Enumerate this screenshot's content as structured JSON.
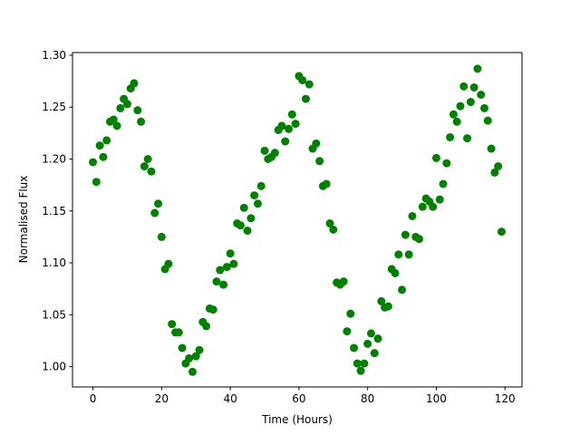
{
  "chart_data": {
    "type": "scatter",
    "xlabel": "Time (Hours)",
    "ylabel": "Normalised Flux",
    "color": "#008000",
    "x": [
      0,
      1,
      2,
      3,
      4,
      5,
      6,
      7,
      8,
      9,
      10,
      11,
      12,
      13,
      14,
      15,
      16,
      17,
      18,
      19,
      20,
      21,
      22,
      23,
      24,
      25,
      26,
      27,
      28,
      29,
      30,
      31,
      32,
      33,
      34,
      35,
      36,
      37,
      38,
      39,
      40,
      41,
      42,
      43,
      44,
      45,
      46,
      47,
      48,
      49,
      50,
      51,
      52,
      53,
      54,
      55,
      56,
      57,
      58,
      59,
      60,
      61,
      62,
      63,
      64,
      65,
      66,
      67,
      68,
      69,
      70,
      71,
      72,
      73,
      74,
      75,
      76,
      77,
      78,
      79,
      80,
      81,
      82,
      83,
      84,
      85,
      86,
      87,
      88,
      89,
      90,
      91,
      92,
      93,
      94,
      95,
      96,
      97,
      98,
      99,
      100,
      101,
      102,
      103,
      104,
      105,
      106,
      107,
      108,
      109,
      110,
      111,
      112,
      113,
      114,
      115,
      116,
      117,
      118,
      119
    ],
    "values": [
      1.197,
      1.178,
      1.213,
      1.202,
      1.218,
      1.236,
      1.238,
      1.232,
      1.249,
      1.258,
      1.253,
      1.268,
      1.273,
      1.247,
      1.236,
      1.193,
      1.2,
      1.188,
      1.148,
      1.157,
      1.125,
      1.094,
      1.099,
      1.041,
      1.033,
      1.033,
      1.018,
      1.003,
      1.008,
      0.995,
      1.01,
      1.016,
      1.043,
      1.039,
      1.056,
      1.055,
      1.082,
      1.093,
      1.079,
      1.096,
      1.109,
      1.099,
      1.138,
      1.136,
      1.153,
      1.131,
      1.143,
      1.165,
      1.157,
      1.174,
      1.208,
      1.2,
      1.202,
      1.206,
      1.228,
      1.232,
      1.217,
      1.229,
      1.243,
      1.234,
      1.28,
      1.276,
      1.258,
      1.272,
      1.21,
      1.215,
      1.198,
      1.174,
      1.176,
      1.138,
      1.132,
      1.081,
      1.079,
      1.082,
      1.034,
      1.051,
      1.018,
      1.003,
      0.996,
      1.003,
      1.022,
      1.032,
      1.013,
      1.027,
      1.063,
      1.057,
      1.058,
      1.094,
      1.09,
      1.108,
      1.074,
      1.127,
      1.108,
      1.145,
      1.125,
      1.123,
      1.154,
      1.162,
      1.159,
      1.154,
      1.201,
      1.161,
      1.176,
      1.196,
      1.221,
      1.243,
      1.236,
      1.251,
      1.27,
      1.22,
      1.255,
      1.269,
      1.287,
      1.262,
      1.249,
      1.237,
      1.21,
      1.187,
      1.193,
      1.13
    ],
    "xlim": [
      -5.95,
      124.95
    ],
    "xticks": [
      0,
      20,
      40,
      60,
      80,
      100,
      120
    ],
    "ylim": [
      0.9804,
      1.3026
    ],
    "yticks": [
      {
        "value": 1.0,
        "label": "1.00"
      },
      {
        "value": 1.05,
        "label": "1.05"
      },
      {
        "value": 1.1,
        "label": "1.10"
      },
      {
        "value": 1.15,
        "label": "1.15"
      },
      {
        "value": 1.2,
        "label": "1.20"
      },
      {
        "value": 1.25,
        "label": "1.25"
      },
      {
        "value": 1.3,
        "label": "1.30"
      }
    ]
  }
}
